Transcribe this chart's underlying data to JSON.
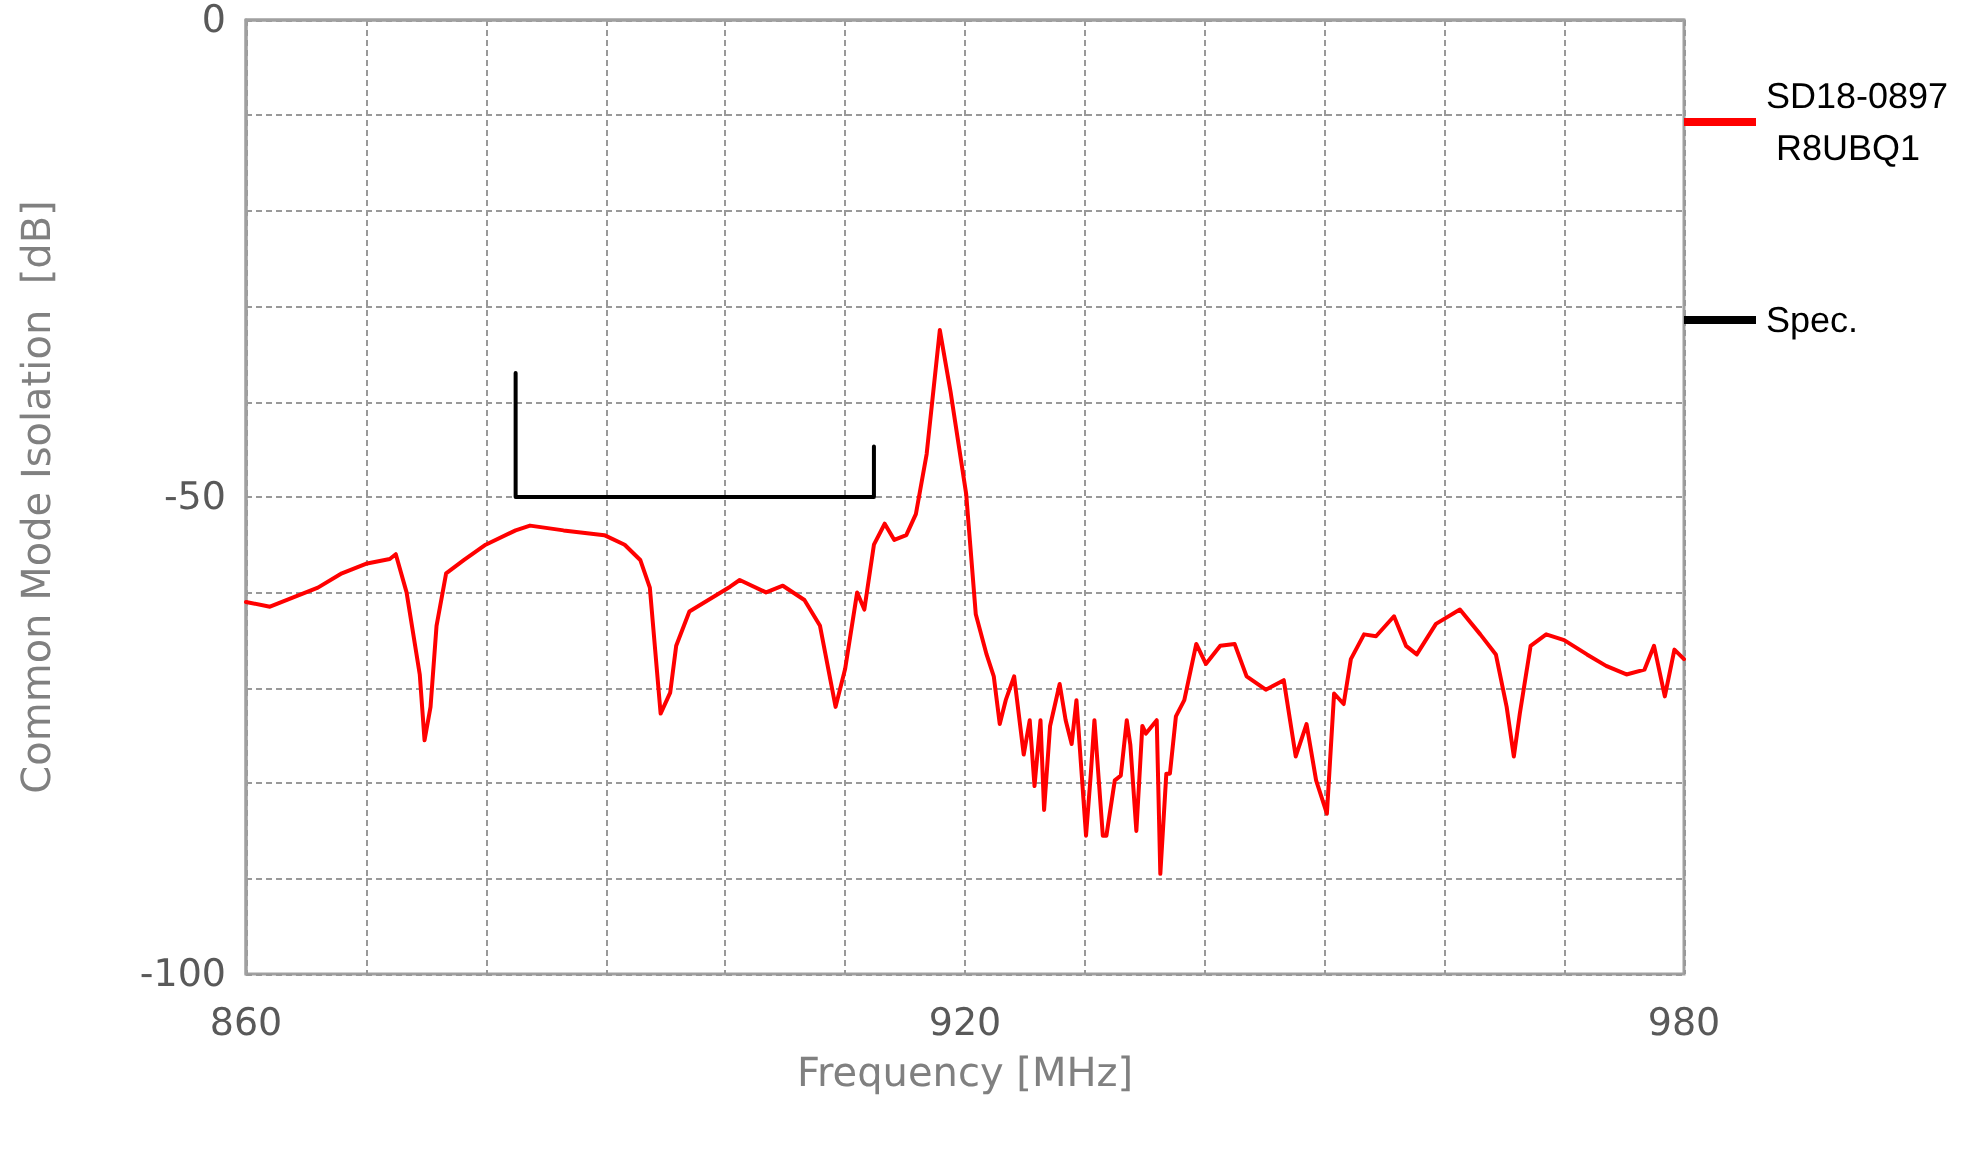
{
  "chart_data": {
    "type": "line",
    "xlabel": "Frequency [MHz]",
    "ylabel": "Common Mode Isolation  [dB]",
    "xlim": [
      860,
      980
    ],
    "ylim": [
      -100,
      0
    ],
    "xticks": [
      860,
      {
        "value": 870,
        "label": null
      },
      {
        "value": 880,
        "label": null
      },
      {
        "value": 890,
        "label": null
      },
      {
        "value": 900,
        "label": null
      },
      {
        "value": 910,
        "label": null
      },
      920,
      {
        "value": 930,
        "label": null
      },
      {
        "value": 940,
        "label": null
      },
      {
        "value": 950,
        "label": null
      },
      {
        "value": 960,
        "label": null
      },
      {
        "value": 970,
        "label": null
      },
      980
    ],
    "yticks": [
      -100,
      {
        "value": -90,
        "label": null
      },
      {
        "value": -80,
        "label": null
      },
      {
        "value": -70,
        "label": null
      },
      {
        "value": -60,
        "label": null
      },
      -50,
      {
        "value": -40,
        "label": null
      },
      {
        "value": -30,
        "label": null
      },
      {
        "value": -20,
        "label": null
      },
      {
        "value": -10,
        "label": null
      },
      0
    ],
    "grid": true,
    "legend": "right",
    "marker": "none",
    "line_style": "solid",
    "series": [
      {
        "name": "SD18-0897 R8UBQ1",
        "color": "#ff0000",
        "x": [
          860,
          862,
          864,
          866,
          868,
          870,
          872,
          872.5,
          873.4,
          874.5,
          874.9,
          875.4,
          875.9,
          876.7,
          878.2,
          880,
          882.5,
          883.7,
          886.5,
          889.9,
          891.6,
          892.9,
          893.7,
          894.6,
          895.4,
          895.9,
          897,
          900.4,
          901.2,
          903.4,
          904.8,
          906.6,
          907.9,
          909.2,
          910,
          911,
          911.6,
          912.4,
          913.3,
          914.1,
          915.1,
          915.9,
          916.8,
          917.9,
          918.8,
          920.1,
          920.9,
          921.8,
          922.4,
          922.9,
          923.4,
          924.1,
          924.9,
          925.4,
          925.8,
          926.3,
          926.6,
          927.1,
          927.9,
          928.4,
          928.9,
          929.3,
          930.1,
          930.5,
          930.8,
          931.5,
          931.8,
          932.5,
          933,
          933.5,
          933.8,
          934.3,
          934.8,
          935.1,
          936,
          936.3,
          936.8,
          937.1,
          937.6,
          938.3,
          939.3,
          940.1,
          941.3,
          942.5,
          943.5,
          945.1,
          946.6,
          947.6,
          948.5,
          949.3,
          950.2,
          950.8,
          951.6,
          952.2,
          953.3,
          954.3,
          955.8,
          956.8,
          957.7,
          959.3,
          961.3,
          963,
          964.3,
          965.2,
          965.8,
          966.3,
          967.2,
          968.5,
          970,
          971.9,
          973.5,
          975.2,
          976.7,
          977.5,
          978.4,
          979.2,
          980
        ],
        "values": [
          -61,
          -61.5,
          -60.5,
          -59.5,
          -58,
          -57,
          -56.5,
          -56,
          -60,
          -68.6,
          -75.5,
          -72,
          -63.5,
          -58,
          -56.6,
          -55,
          -53.5,
          -53,
          -53.5,
          -54,
          -55,
          -56.6,
          -59.5,
          -72.7,
          -70.5,
          -65.6,
          -62,
          -59.4,
          -58.7,
          -60,
          -59.3,
          -60.8,
          -63.5,
          -72,
          -68,
          -60,
          -61.8,
          -55,
          -52.8,
          -54.5,
          -54,
          -51.8,
          -45.5,
          -32.5,
          -39,
          -49.7,
          -62.3,
          -66.5,
          -68.8,
          -73.8,
          -71.3,
          -68.8,
          -77,
          -73.4,
          -80.3,
          -73.4,
          -82.8,
          -74,
          -69.6,
          -73.4,
          -75.9,
          -71.3,
          -85.5,
          -79,
          -73.4,
          -85.5,
          -85.5,
          -79.7,
          -79.2,
          -73.4,
          -76,
          -85,
          -74,
          -74.8,
          -73.4,
          -89.5,
          -79,
          -79,
          -73,
          -71.3,
          -65.4,
          -67.5,
          -65.6,
          -65.4,
          -68.8,
          -70.2,
          -69.2,
          -77.2,
          -73.8,
          -79.7,
          -83.2,
          -70.6,
          -71.7,
          -67,
          -64.4,
          -64.6,
          -62.5,
          -65.6,
          -66.5,
          -63.3,
          -61.8,
          -64.4,
          -66.5,
          -72,
          -77.2,
          -72.7,
          -65.6,
          -64.4,
          -65,
          -66.5,
          -67.7,
          -68.6,
          -68.1,
          -65.6,
          -70.9,
          -66,
          -67
        ]
      },
      {
        "name": "Spec.",
        "color": "#000000",
        "x": [
          882.5,
          882.5,
          912.4,
          912.4
        ],
        "values": [
          -37,
          -50,
          -50,
          -44.7
        ]
      }
    ]
  }
}
